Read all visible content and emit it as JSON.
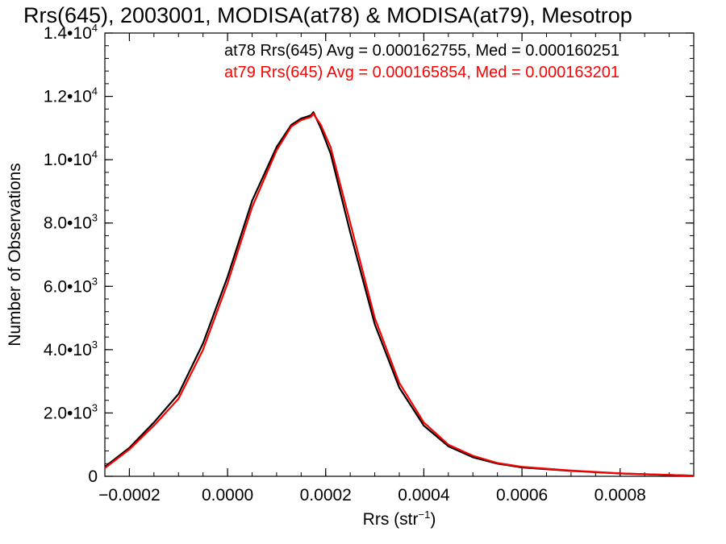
{
  "chart_data": {
    "type": "line",
    "title": "Rrs(645), 2003001, MODISA(at78) & MODISA(at79), Mesotrop",
    "xlabel": "Rrs (str",
    "xlabel_sup": "−1",
    "xlabel_close": ")",
    "ylabel": "Number of Observations",
    "xlim": [
      -0.00025,
      0.00095
    ],
    "ylim": [
      0,
      14000
    ],
    "x_ticks": [
      {
        "value": -0.0002,
        "label": "−0.0002"
      },
      {
        "value": 0.0,
        "label": "0.0000"
      },
      {
        "value": 0.0002,
        "label": "0.0002"
      },
      {
        "value": 0.0004,
        "label": "0.0004"
      },
      {
        "value": 0.0006,
        "label": "0.0006"
      },
      {
        "value": 0.0008,
        "label": "0.0008"
      }
    ],
    "y_ticks": [
      {
        "value": 0,
        "mant": "0",
        "exp": ""
      },
      {
        "value": 2000,
        "mant": "2.0•10",
        "exp": "3"
      },
      {
        "value": 4000,
        "mant": "4.0•10",
        "exp": "3"
      },
      {
        "value": 6000,
        "mant": "6.0•10",
        "exp": "3"
      },
      {
        "value": 8000,
        "mant": "8.0•10",
        "exp": "3"
      },
      {
        "value": 10000,
        "mant": "1.0•10",
        "exp": "4"
      },
      {
        "value": 12000,
        "mant": "1.2•10",
        "exp": "4"
      },
      {
        "value": 14000,
        "mant": "1.4•10",
        "exp": "4"
      }
    ],
    "grid": false,
    "series": [
      {
        "name": "at78",
        "color": "#000000",
        "stats_text": "at78 Rrs(645) Avg = 0.000162755, Med = 0.000160251",
        "x": [
          -0.00025,
          -0.0002,
          -0.00015,
          -0.0001,
          -5e-05,
          0.0,
          5e-05,
          0.0001,
          0.00013,
          0.00015,
          0.00017,
          0.000175,
          0.00019,
          0.00021,
          0.00025,
          0.0003,
          0.00035,
          0.0004,
          0.00045,
          0.0005,
          0.00055,
          0.0006,
          0.0007,
          0.0008,
          0.0009,
          0.00095
        ],
        "values": [
          300,
          900,
          1700,
          2600,
          4200,
          6300,
          8700,
          10400,
          11100,
          11300,
          11400,
          11500,
          11000,
          10200,
          7700,
          4800,
          2800,
          1600,
          950,
          600,
          400,
          280,
          170,
          90,
          40,
          20
        ]
      },
      {
        "name": "at79",
        "color": "#ff0000",
        "stats_text": "at79 Rrs(645) Avg = 0.000165854, Med = 0.000163201",
        "x": [
          -0.00025,
          -0.0002,
          -0.00015,
          -0.0001,
          -5e-05,
          0.0,
          5e-05,
          0.0001,
          0.00013,
          0.00015,
          0.00017,
          0.000175,
          0.00019,
          0.00021,
          0.00025,
          0.0003,
          0.00035,
          0.0004,
          0.00045,
          0.0005,
          0.00055,
          0.0006,
          0.0007,
          0.0008,
          0.0009,
          0.00095
        ],
        "values": [
          260,
          850,
          1600,
          2450,
          4000,
          6100,
          8500,
          10300,
          11050,
          11250,
          11350,
          11450,
          11100,
          10400,
          8000,
          5000,
          2950,
          1700,
          1000,
          650,
          420,
          300,
          180,
          95,
          42,
          20
        ]
      }
    ]
  }
}
